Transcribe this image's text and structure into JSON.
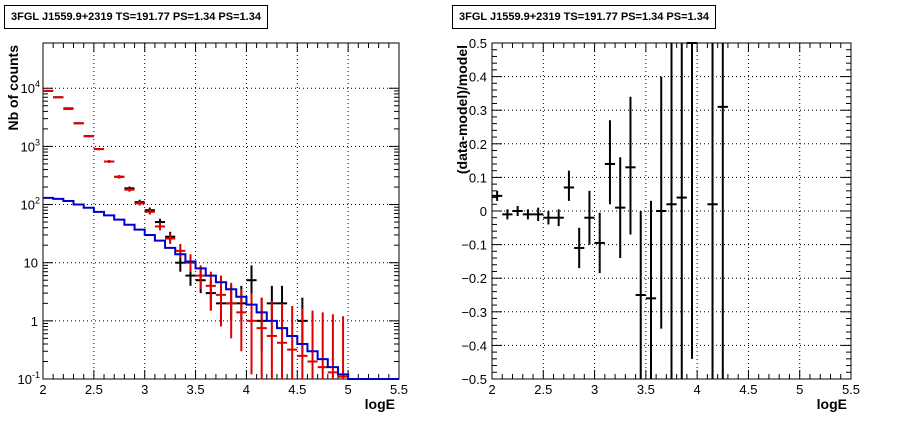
{
  "chart_data": [
    {
      "type": "scatter",
      "title": "3FGL J1559.9+2319 TS=191.77 PS=1.34 PS=1.34",
      "xlabel": "logE",
      "ylabel": "Nb of counts",
      "xlim": [
        2,
        5.5
      ],
      "ylim": [
        0.1,
        60000
      ],
      "ylog": true,
      "grid": true,
      "xticks": [
        "2",
        "2.5",
        "3",
        "3.5",
        "4",
        "4.5",
        "5",
        "5.5"
      ],
      "yticks": [
        {
          "v": 0.1,
          "label": "10",
          "sup": "-1"
        },
        {
          "v": 1,
          "label": "1",
          "sup": ""
        },
        {
          "v": 10,
          "label": "10",
          "sup": ""
        },
        {
          "v": 100,
          "label": "10",
          "sup": "2"
        },
        {
          "v": 1000,
          "label": "10",
          "sup": "3"
        },
        {
          "v": 10000,
          "label": "10",
          "sup": "4"
        }
      ],
      "series": [
        {
          "kind": "points",
          "color": "#000000",
          "points": [
            {
              "x": 2.05,
              "y": 9000,
              "lo": 8800,
              "hi": 9200
            },
            {
              "x": 2.15,
              "y": 7000,
              "lo": 6850,
              "hi": 7150
            },
            {
              "x": 2.25,
              "y": 4500,
              "lo": 4400,
              "hi": 4600
            },
            {
              "x": 2.35,
              "y": 2500,
              "lo": 2420,
              "hi": 2580
            },
            {
              "x": 2.45,
              "y": 1500,
              "lo": 1440,
              "hi": 1560
            },
            {
              "x": 2.55,
              "y": 900,
              "lo": 860,
              "hi": 940
            },
            {
              "x": 2.65,
              "y": 550,
              "lo": 520,
              "hi": 580
            },
            {
              "x": 2.75,
              "y": 300,
              "lo": 280,
              "hi": 320
            },
            {
              "x": 2.85,
              "y": 190,
              "lo": 176,
              "hi": 204
            },
            {
              "x": 2.95,
              "y": 110,
              "lo": 100,
              "hi": 121
            },
            {
              "x": 3.05,
              "y": 80,
              "lo": 71,
              "hi": 89
            },
            {
              "x": 3.15,
              "y": 50,
              "lo": 43,
              "hi": 57
            },
            {
              "x": 3.25,
              "y": 28,
              "lo": 23,
              "hi": 34
            },
            {
              "x": 3.35,
              "y": 10,
              "lo": 7,
              "hi": 14
            },
            {
              "x": 3.45,
              "y": 6,
              "lo": 4,
              "hi": 9
            },
            {
              "x": 3.55,
              "y": 5,
              "lo": 3,
              "hi": 8
            },
            {
              "x": 3.65,
              "y": 3,
              "lo": 1.5,
              "hi": 5
            },
            {
              "x": 3.75,
              "y": 2,
              "lo": 1,
              "hi": 4
            },
            {
              "x": 3.85,
              "y": 2,
              "lo": 1,
              "hi": 4
            },
            {
              "x": 3.95,
              "y": 2,
              "lo": 1,
              "hi": 4
            },
            {
              "x": 4.05,
              "y": 5,
              "lo": 2.5,
              "hi": 9
            },
            {
              "x": 4.15,
              "y": 1,
              "lo": 0.3,
              "hi": 2.5
            },
            {
              "x": 4.25,
              "y": 2,
              "lo": 1,
              "hi": 4
            },
            {
              "x": 4.35,
              "y": 2,
              "lo": 1,
              "hi": 4
            },
            {
              "x": 4.55,
              "y": 1,
              "lo": 0.3,
              "hi": 2.5
            }
          ]
        },
        {
          "kind": "points",
          "color": "#e00000",
          "points": [
            {
              "x": 2.05,
              "y": 9000,
              "lo": 8800,
              "hi": 9200
            },
            {
              "x": 2.15,
              "y": 7000,
              "lo": 6850,
              "hi": 7150
            },
            {
              "x": 2.25,
              "y": 4400,
              "lo": 4300,
              "hi": 4500
            },
            {
              "x": 2.35,
              "y": 2500,
              "lo": 2420,
              "hi": 2580
            },
            {
              "x": 2.45,
              "y": 1500,
              "lo": 1440,
              "hi": 1560
            },
            {
              "x": 2.55,
              "y": 900,
              "lo": 860,
              "hi": 940
            },
            {
              "x": 2.65,
              "y": 550,
              "lo": 520,
              "hi": 580
            },
            {
              "x": 2.75,
              "y": 300,
              "lo": 280,
              "hi": 320
            },
            {
              "x": 2.85,
              "y": 180,
              "lo": 166,
              "hi": 194
            },
            {
              "x": 2.95,
              "y": 105,
              "lo": 96,
              "hi": 115
            },
            {
              "x": 3.05,
              "y": 75,
              "lo": 67,
              "hi": 84
            },
            {
              "x": 3.15,
              "y": 42,
              "lo": 36,
              "hi": 49
            },
            {
              "x": 3.25,
              "y": 26,
              "lo": 21,
              "hi": 32
            },
            {
              "x": 3.35,
              "y": 16,
              "lo": 12,
              "hi": 21
            },
            {
              "x": 3.45,
              "y": 10,
              "lo": 7,
              "hi": 14
            },
            {
              "x": 3.55,
              "y": 6,
              "lo": 3.5,
              "hi": 9
            },
            {
              "x": 3.65,
              "y": 4,
              "lo": 1.5,
              "hi": 7
            },
            {
              "x": 3.75,
              "y": 2.8,
              "lo": 0.8,
              "hi": 6
            },
            {
              "x": 3.85,
              "y": 2.0,
              "lo": 0.5,
              "hi": 4.5
            },
            {
              "x": 3.95,
              "y": 1.4,
              "lo": 0.3,
              "hi": 3.5
            },
            {
              "x": 4.05,
              "y": 1.0,
              "lo": 0.12,
              "hi": 3
            },
            {
              "x": 4.15,
              "y": 0.75,
              "lo": 0.1,
              "hi": 2.5
            },
            {
              "x": 4.25,
              "y": 0.55,
              "lo": 0.1,
              "hi": 2.2
            },
            {
              "x": 4.35,
              "y": 0.42,
              "lo": 0.1,
              "hi": 2.0
            },
            {
              "x": 4.45,
              "y": 0.32,
              "lo": 0.1,
              "hi": 1.8
            },
            {
              "x": 4.55,
              "y": 0.25,
              "lo": 0.1,
              "hi": 1.6
            },
            {
              "x": 4.65,
              "y": 0.2,
              "lo": 0.1,
              "hi": 1.5
            },
            {
              "x": 4.75,
              "y": 0.16,
              "lo": 0.1,
              "hi": 1.4
            },
            {
              "x": 4.85,
              "y": 0.13,
              "lo": 0.1,
              "hi": 1.3
            },
            {
              "x": 4.95,
              "y": 0.11,
              "lo": 0.1,
              "hi": 1.2
            }
          ]
        },
        {
          "kind": "step",
          "color": "#0000cc",
          "edges": [
            2.0,
            2.1,
            2.2,
            2.3,
            2.4,
            2.5,
            2.6,
            2.7,
            2.8,
            2.9,
            3.0,
            3.1,
            3.2,
            3.3,
            3.4,
            3.5,
            3.6,
            3.7,
            3.8,
            3.9,
            4.0,
            4.1,
            4.2,
            4.3,
            4.4,
            4.5,
            4.6,
            4.7,
            4.8,
            4.9,
            5.0,
            5.5
          ],
          "values": [
            130,
            125,
            115,
            100,
            88,
            75,
            65,
            55,
            45,
            37,
            30,
            24,
            18,
            14,
            10.5,
            8,
            6,
            4.6,
            3.5,
            2.6,
            1.9,
            1.4,
            1.0,
            0.75,
            0.55,
            0.4,
            0.3,
            0.22,
            0.16,
            0.12,
            0.1
          ]
        }
      ]
    },
    {
      "type": "scatter",
      "title": "3FGL J1559.9+2319 TS=191.77 PS=1.34 PS=1.34",
      "xlabel": "logE",
      "ylabel": "(data-model)/model",
      "xlim": [
        2,
        5.5
      ],
      "ylim": [
        -0.5,
        0.5
      ],
      "ylog": false,
      "grid": true,
      "xticks": [
        "2",
        "2.5",
        "3",
        "3.5",
        "4",
        "4.5",
        "5",
        "5.5"
      ],
      "yticks": [
        {
          "v": -0.5,
          "label": "−0.5"
        },
        {
          "v": -0.4,
          "label": "−0.4"
        },
        {
          "v": -0.3,
          "label": "−0.3"
        },
        {
          "v": -0.2,
          "label": "−0.2"
        },
        {
          "v": -0.1,
          "label": "−0.1"
        },
        {
          "v": 0,
          "label": "0"
        },
        {
          "v": 0.1,
          "label": "0.1"
        },
        {
          "v": 0.2,
          "label": "0.2"
        },
        {
          "v": 0.3,
          "label": "0.3"
        },
        {
          "v": 0.4,
          "label": "0.4"
        },
        {
          "v": 0.5,
          "label": "0.5"
        }
      ],
      "series": [
        {
          "kind": "points",
          "color": "#000000",
          "points": [
            {
              "x": 2.05,
              "y": 0.045,
              "lo": 0.03,
              "hi": 0.06
            },
            {
              "x": 2.15,
              "y": -0.01,
              "lo": -0.025,
              "hi": 0.005
            },
            {
              "x": 2.25,
              "y": 0.0,
              "lo": -0.015,
              "hi": 0.015
            },
            {
              "x": 2.35,
              "y": -0.01,
              "lo": -0.025,
              "hi": 0.005
            },
            {
              "x": 2.45,
              "y": -0.01,
              "lo": -0.03,
              "hi": 0.01
            },
            {
              "x": 2.55,
              "y": -0.02,
              "lo": -0.04,
              "hi": 0.0
            },
            {
              "x": 2.65,
              "y": -0.02,
              "lo": -0.045,
              "hi": 0.005
            },
            {
              "x": 2.75,
              "y": 0.07,
              "lo": 0.03,
              "hi": 0.12
            },
            {
              "x": 2.85,
              "y": -0.11,
              "lo": -0.17,
              "hi": -0.05
            },
            {
              "x": 2.95,
              "y": -0.02,
              "lo": -0.1,
              "hi": 0.06
            },
            {
              "x": 3.05,
              "y": -0.095,
              "lo": -0.185,
              "hi": -0.005
            },
            {
              "x": 3.15,
              "y": 0.14,
              "lo": 0.02,
              "hi": 0.27
            },
            {
              "x": 3.25,
              "y": 0.01,
              "lo": -0.14,
              "hi": 0.16
            },
            {
              "x": 3.35,
              "y": 0.13,
              "lo": -0.07,
              "hi": 0.34
            },
            {
              "x": 3.45,
              "y": -0.25,
              "lo": -0.5,
              "hi": 0.0
            },
            {
              "x": 3.55,
              "y": -0.26,
              "lo": -0.5,
              "hi": 0.03
            },
            {
              "x": 3.65,
              "y": 0.0,
              "lo": -0.35,
              "hi": 0.4
            },
            {
              "x": 3.75,
              "y": 0.02,
              "lo": -0.5,
              "hi": 0.5
            },
            {
              "x": 3.85,
              "y": 0.04,
              "lo": -0.5,
              "hi": 0.5
            },
            {
              "x": 3.95,
              "y": 0.5,
              "lo": -0.44,
              "hi": 0.5
            },
            {
              "x": 4.15,
              "y": 0.02,
              "lo": -0.5,
              "hi": 0.5
            },
            {
              "x": 4.25,
              "y": 0.31,
              "lo": -0.5,
              "hi": 0.5
            }
          ]
        }
      ]
    }
  ]
}
